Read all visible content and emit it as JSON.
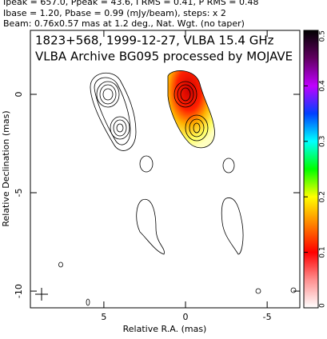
{
  "chart_data": {
    "type": "contour",
    "header": [
      "Ipeak = 657.0, Ppeak = 43.6, I RMS = 0.41, P RMS = 0.48",
      "Ibase = 1.20, Pbase = 0.99 (mJy/beam), steps: x 2",
      "Beam: 0.76x0.57 mas at 1.2 deg., Nat. Wgt. (no taper)"
    ],
    "title": "1823+568, 1999-12-27, VLBA 15.4 GHz",
    "subtitle": "VLBA Archive BG095 processed by MOJAVE",
    "xlabel": "Relative R.A. (mas)",
    "ylabel": "Relative Declination (mas)",
    "xlim": [
      9.5,
      -7
    ],
    "xticks": [
      5,
      0,
      -5
    ],
    "ylim": [
      -10.85,
      3.25
    ],
    "yticks": [
      0,
      -5,
      -10
    ],
    "colorbar_lim": [
      0,
      0.5
    ],
    "colorbar_ticks": [
      0,
      0.1,
      0.2,
      0.3,
      0.4,
      0.5
    ]
  }
}
